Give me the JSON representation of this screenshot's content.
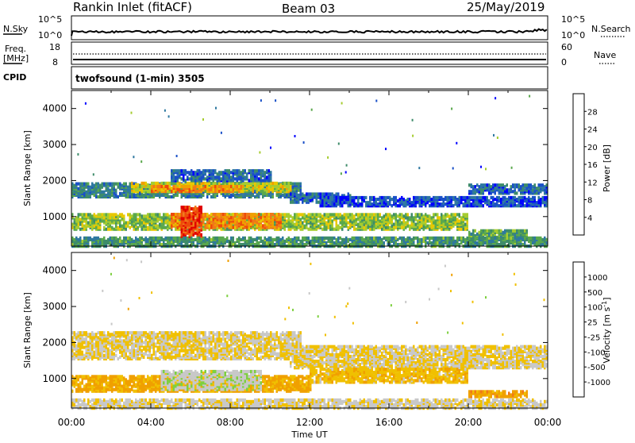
{
  "header": {
    "station": "Rankin Inlet (fitACF)",
    "beam": "Beam 03",
    "date": "25/May/2019"
  },
  "strip1": {
    "left_label": "N.Sky",
    "left_ticks": [
      "10^5",
      "10^0"
    ],
    "right_label": "N.Search",
    "right_ticks": [
      "10^5",
      "10^0"
    ]
  },
  "strip2": {
    "left_label_1": "Freq.",
    "left_label_2": "[MHz]",
    "left_ticks": [
      "18",
      "8"
    ],
    "right_label": "Nave",
    "right_ticks": [
      "60",
      "0"
    ]
  },
  "cpid": {
    "label": "CPID",
    "text": "twofsound (1-min) 3505"
  },
  "chart_data": [
    {
      "type": "heatmap",
      "title": "Power",
      "ylabel": "Slant Range [km]",
      "xlabel": "",
      "xlim": [
        "00:00",
        "24:00"
      ],
      "ylim": [
        180,
        4500
      ],
      "yticks": [
        1000,
        2000,
        3000,
        4000
      ],
      "colorbar": {
        "label": "Power [dB]",
        "ticks": [
          "28",
          "24",
          "20",
          "16",
          "12",
          "8",
          "4"
        ],
        "colors": [
          "#0000ff",
          "#1a50c8",
          "#2e78a0",
          "#3e8c6a",
          "#5aa84c",
          "#a6cc30",
          "#e8c800",
          "#f0a000",
          "#f07818",
          "#ee4a0a",
          "#e00000"
        ],
        "range": [
          0,
          30
        ]
      },
      "bands": [
        {
          "t": [
            0.0,
            11.5
          ],
          "r": [
            1550,
            1950
          ],
          "v": 8
        },
        {
          "t": [
            3.0,
            11.0
          ],
          "r": [
            1700,
            1950
          ],
          "v": 16
        },
        {
          "t": [
            4.0,
            8.5
          ],
          "r": [
            1700,
            1850
          ],
          "v": 22
        },
        {
          "t": [
            5.0,
            10.0
          ],
          "r": [
            2000,
            2300
          ],
          "v": 6
        },
        {
          "t": [
            11.0,
            14.0
          ],
          "r": [
            1400,
            1650
          ],
          "v": 6
        },
        {
          "t": [
            12.5,
            24.0
          ],
          "r": [
            1300,
            1550
          ],
          "v": 4
        },
        {
          "t": [
            20.0,
            24.0
          ],
          "r": [
            1650,
            1900
          ],
          "v": 6
        },
        {
          "t": [
            0.0,
            20.0
          ],
          "r": [
            650,
            1100
          ],
          "v": 14
        },
        {
          "t": [
            5.0,
            10.5
          ],
          "r": [
            700,
            1100
          ],
          "v": 22
        },
        {
          "t": [
            5.5,
            6.5
          ],
          "r": [
            450,
            1300
          ],
          "v": 27
        },
        {
          "t": [
            20.0,
            23.0
          ],
          "r": [
            380,
            650
          ],
          "v": 12
        },
        {
          "t": [
            0.0,
            24.0
          ],
          "r": [
            180,
            450
          ],
          "v": 10
        }
      ]
    },
    {
      "type": "heatmap",
      "title": "Velocity",
      "ylabel": "Slant Range [km]",
      "xlabel": "Time UT",
      "xlim": [
        "00:00",
        "24:00"
      ],
      "ylim": [
        180,
        4500
      ],
      "xticks": [
        "00:00",
        "04:00",
        "08:00",
        "12:00",
        "16:00",
        "20:00",
        "00:00"
      ],
      "yticks": [
        1000,
        2000,
        3000,
        4000
      ],
      "colorbar": {
        "label": "Velocity [m s^-1]",
        "ticks": [
          "1000",
          "500",
          "100",
          "25",
          "-25",
          "-100",
          "-500",
          "-1000"
        ],
        "colors": [
          "#e00000",
          "#f04000",
          "#f07818",
          "#f0a000",
          "#f0c000",
          "#c8c8c8",
          "#7ed040",
          "#3e8c6a",
          "#1a50c8",
          "#0000ff"
        ],
        "range": [
          -1200,
          1200
        ]
      },
      "bands": [
        {
          "t": [
            0.0,
            11.5
          ],
          "r": [
            1550,
            2300
          ],
          "v": 0
        },
        {
          "t": [
            11.0,
            24.0
          ],
          "r": [
            1300,
            1900
          ],
          "v": 0
        },
        {
          "t": [
            0.0,
            12.0
          ],
          "r": [
            650,
            1100
          ],
          "v": -300
        },
        {
          "t": [
            4.5,
            9.5
          ],
          "r": [
            700,
            1200
          ],
          "v": 150
        },
        {
          "t": [
            12.0,
            20.0
          ],
          "r": [
            900,
            1300
          ],
          "v": -150
        },
        {
          "t": [
            20.0,
            23.0
          ],
          "r": [
            500,
            650
          ],
          "v": -350
        },
        {
          "t": [
            0.0,
            24.0
          ],
          "r": [
            180,
            450
          ],
          "v": 60
        }
      ]
    }
  ]
}
